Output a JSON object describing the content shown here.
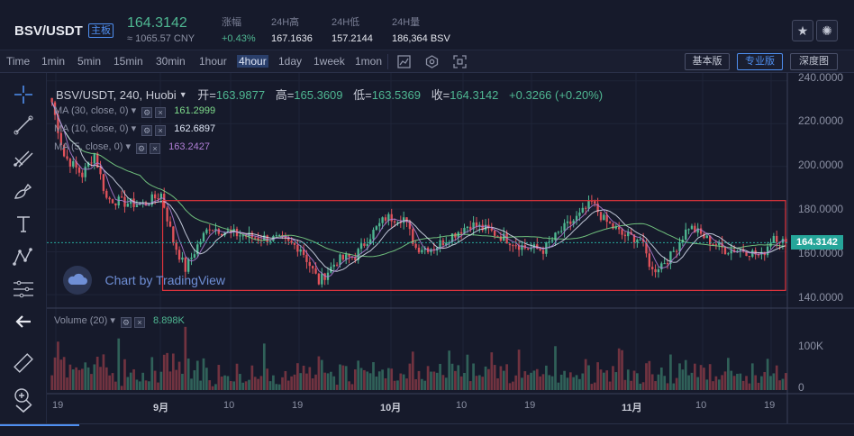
{
  "ticker": {
    "pair": "BSV/USDT",
    "board_tag": "主板",
    "last_price": "164.3142",
    "cny_price": "≈ 1065.57 CNY",
    "stats": [
      {
        "label": "涨幅",
        "value": "+0.43%",
        "up": true
      },
      {
        "label": "24H高",
        "value": "167.1636",
        "up": false
      },
      {
        "label": "24H低",
        "value": "157.2144",
        "up": false
      },
      {
        "label": "24H量",
        "value": "186,364 BSV",
        "up": false
      }
    ],
    "star_icon": "star-icon",
    "theme_icon": "sun-icon"
  },
  "toolbar": {
    "timeframes": [
      "Time",
      "1min",
      "5min",
      "15min",
      "30min",
      "1hour",
      "4hour",
      "1day",
      "1week",
      "1mon"
    ],
    "active_timeframe": "4hour",
    "tool_icons": [
      "candles-icon",
      "indicators-icon",
      "fullscreen-icon"
    ],
    "views": [
      "基本版",
      "专业版",
      "深度图"
    ],
    "active_view": "专业版"
  },
  "drawing_tools": [
    "crosshair-icon",
    "trend-line-icon",
    "pitchfork-icon",
    "brush-icon",
    "text-icon",
    "pattern-icon",
    "fib-icon",
    "back-arrow-icon",
    "ruler-icon",
    "zoom-in-icon"
  ],
  "chart": {
    "legend": {
      "symbol": "BSV/USDT, 240, Huobi",
      "open_label": "开=",
      "open": "163.9877",
      "high_label": "高=",
      "high": "165.3609",
      "low_label": "低=",
      "low": "163.5369",
      "close_label": "收=",
      "close": "164.3142",
      "change": "+0.3266 (+0.20%)"
    },
    "indicators": [
      {
        "label": "MA (30, close, 0)",
        "value": "161.2999",
        "color": "#7fdc8b"
      },
      {
        "label": "MA (10, close, 0)",
        "value": "162.6897",
        "color": "#dfe6f6"
      },
      {
        "label": "MA (5, close, 0)",
        "value": "163.2427",
        "color": "#b07fd6"
      }
    ],
    "watermark": "Chart by TradingView",
    "volume_label": "Volume (20)",
    "volume_value": "8.898K",
    "price_axis": [
      "240.0000",
      "220.0000",
      "200.0000",
      "180.0000",
      "160.0000",
      "140.0000"
    ],
    "volume_axis": [
      "100K",
      "0"
    ],
    "last_price_tag": "164.3142",
    "x_labels": [
      {
        "text": "19",
        "bold": false
      },
      {
        "text": "9月",
        "bold": true
      },
      {
        "text": "10",
        "bold": false
      },
      {
        "text": "19",
        "bold": false
      },
      {
        "text": "10月",
        "bold": true
      },
      {
        "text": "10",
        "bold": false
      },
      {
        "text": "19",
        "bold": false
      },
      {
        "text": "11月",
        "bold": true
      },
      {
        "text": "10",
        "bold": false
      },
      {
        "text": "19",
        "bold": false
      }
    ],
    "colors": {
      "up": "#4fb792",
      "down": "#e0525a",
      "box": "#e0343c",
      "last_line": "#26a69a"
    }
  },
  "chart_data": {
    "type": "candlestick",
    "symbol": "BSV/USDT",
    "interval": "240",
    "exchange": "Huobi",
    "ylim": [
      135,
      242
    ],
    "volume_ylim": [
      0,
      130000
    ],
    "last_price": 164.3142,
    "range_box": {
      "high": 184,
      "low": 142
    },
    "trend_anchors": [
      [
        0,
        230
      ],
      [
        4,
        205
      ],
      [
        10,
        196
      ],
      [
        14,
        206
      ],
      [
        18,
        185
      ],
      [
        24,
        183
      ],
      [
        30,
        182
      ],
      [
        36,
        187
      ],
      [
        40,
        165
      ],
      [
        44,
        152
      ],
      [
        48,
        163
      ],
      [
        52,
        172
      ],
      [
        58,
        169
      ],
      [
        66,
        167
      ],
      [
        74,
        166
      ],
      [
        82,
        162
      ],
      [
        88,
        146
      ],
      [
        94,
        156
      ],
      [
        100,
        158
      ],
      [
        104,
        166
      ],
      [
        110,
        176
      ],
      [
        116,
        176
      ],
      [
        120,
        162
      ],
      [
        126,
        162
      ],
      [
        132,
        168
      ],
      [
        138,
        173
      ],
      [
        144,
        170
      ],
      [
        150,
        166
      ],
      [
        156,
        162
      ],
      [
        162,
        161
      ],
      [
        168,
        170
      ],
      [
        174,
        177
      ],
      [
        178,
        183
      ],
      [
        182,
        175
      ],
      [
        188,
        168
      ],
      [
        194,
        166
      ],
      [
        198,
        151
      ],
      [
        204,
        158
      ],
      [
        210,
        172
      ],
      [
        216,
        166
      ],
      [
        222,
        161
      ],
      [
        228,
        161
      ],
      [
        234,
        158
      ],
      [
        238,
        168
      ],
      [
        242,
        164
      ]
    ]
  }
}
